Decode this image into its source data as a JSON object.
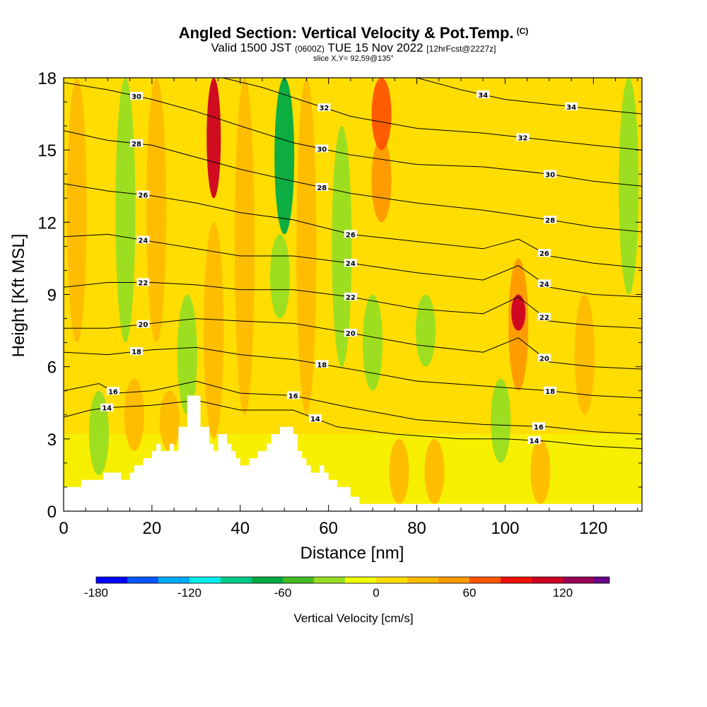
{
  "header": {
    "title": "Angled Section: Vertical Velocity & Pot.Temp.",
    "title_suffix": "(C)",
    "valid_prefix": "Valid 1500 JST",
    "valid_zulu": "(0600Z)",
    "valid_date": "TUE 15 Nov 2022",
    "forecast": "[12hrFcst@2227z]",
    "slice": "slice X,Y= 92,59@135°"
  },
  "chart_data": {
    "type": "heatmap",
    "xlabel": "Distance [nm]",
    "ylabel": "Height [Kft MSL]",
    "xlim": [
      0,
      131
    ],
    "ylim": [
      0,
      18
    ],
    "x_ticks": [
      0,
      20,
      40,
      60,
      80,
      100,
      120
    ],
    "y_ticks": [
      0,
      3,
      6,
      9,
      12,
      15,
      18
    ],
    "colorbar": {
      "label": "Vertical Velocity [cm/s]",
      "ticks": [
        -180,
        -120,
        -60,
        0,
        60,
        120
      ],
      "range": [
        -180,
        150
      ],
      "bins": [
        {
          "from": -180,
          "to": -160,
          "color": "#0000ff"
        },
        {
          "from": -160,
          "to": -140,
          "color": "#0055ff"
        },
        {
          "from": -140,
          "to": -120,
          "color": "#00aaff"
        },
        {
          "from": -120,
          "to": -100,
          "color": "#00eeee"
        },
        {
          "from": -100,
          "to": -80,
          "color": "#00cc88"
        },
        {
          "from": -80,
          "to": -60,
          "color": "#00aa44"
        },
        {
          "from": -60,
          "to": -40,
          "color": "#44bb22"
        },
        {
          "from": -40,
          "to": -20,
          "color": "#99dd22"
        },
        {
          "from": -20,
          "to": 0,
          "color": "#eeff00"
        },
        {
          "from": 0,
          "to": 20,
          "color": "#ffdd00"
        },
        {
          "from": 20,
          "to": 40,
          "color": "#ffbb00"
        },
        {
          "from": 40,
          "to": 60,
          "color": "#ff9900"
        },
        {
          "from": 60,
          "to": 80,
          "color": "#ff5500"
        },
        {
          "from": 80,
          "to": 100,
          "color": "#ee1100"
        },
        {
          "from": 100,
          "to": 120,
          "color": "#cc0022"
        },
        {
          "from": 120,
          "to": 140,
          "color": "#990055"
        },
        {
          "from": 140,
          "to": 160,
          "color": "#660088"
        }
      ]
    },
    "velocity_features": [
      {
        "x": 3,
        "y_from": 7,
        "y_to": 18,
        "value": 20
      },
      {
        "x": 8,
        "y_from": 1.5,
        "y_to": 5,
        "value": -30
      },
      {
        "x": 14,
        "y_from": 7,
        "y_to": 18,
        "value": -35
      },
      {
        "x": 16,
        "y_from": 2.5,
        "y_to": 5.5,
        "value": 25
      },
      {
        "x": 21,
        "y_from": 7,
        "y_to": 18,
        "value": 35
      },
      {
        "x": 24,
        "y_from": 2.5,
        "y_to": 5,
        "value": 25
      },
      {
        "x": 28,
        "y_from": 4,
        "y_to": 9,
        "value": -30
      },
      {
        "x": 34,
        "y_from": 13,
        "y_to": 18,
        "value": 100
      },
      {
        "x": 34,
        "y_from": 3,
        "y_to": 12,
        "value": 35
      },
      {
        "x": 41,
        "y_from": 4,
        "y_to": 18,
        "value": 20
      },
      {
        "x": 50,
        "y_from": 11.5,
        "y_to": 18,
        "value": -65
      },
      {
        "x": 49,
        "y_from": 8,
        "y_to": 11.5,
        "value": -35
      },
      {
        "x": 55,
        "y_from": 4,
        "y_to": 18,
        "value": 30
      },
      {
        "x": 63,
        "y_from": 6,
        "y_to": 16,
        "value": -35
      },
      {
        "x": 72,
        "y_from": 15,
        "y_to": 18,
        "value": 70
      },
      {
        "x": 72,
        "y_from": 12,
        "y_to": 15.5,
        "value": 40
      },
      {
        "x": 70,
        "y_from": 5,
        "y_to": 9,
        "value": -30
      },
      {
        "x": 82,
        "y_from": 6,
        "y_to": 9,
        "value": -30
      },
      {
        "x": 76,
        "y_from": 0.3,
        "y_to": 3,
        "value": 25
      },
      {
        "x": 84,
        "y_from": 0.3,
        "y_to": 3,
        "value": 25
      },
      {
        "x": 99,
        "y_from": 2,
        "y_to": 5.5,
        "value": -35
      },
      {
        "x": 103,
        "y_from": 7.5,
        "y_to": 9,
        "value": 110
      },
      {
        "x": 103,
        "y_from": 5,
        "y_to": 10.5,
        "value": 50
      },
      {
        "x": 108,
        "y_from": 0.3,
        "y_to": 3,
        "value": 25
      },
      {
        "x": 118,
        "y_from": 4,
        "y_to": 9,
        "value": 20
      },
      {
        "x": 128,
        "y_from": 9,
        "y_to": 18,
        "value": -35
      }
    ],
    "isentropes": [
      {
        "label": "14",
        "points": [
          [
            0,
            3.9
          ],
          [
            6,
            4.2
          ],
          [
            10,
            4.3
          ],
          [
            20,
            4.4
          ],
          [
            30,
            4.6
          ],
          [
            40,
            4.2
          ],
          [
            52,
            4.2
          ],
          [
            62,
            3.5
          ],
          [
            75,
            3.2
          ],
          [
            90,
            3.0
          ],
          [
            100,
            3.0
          ],
          [
            110,
            2.9
          ],
          [
            120,
            2.7
          ],
          [
            131,
            2.6
          ]
        ]
      },
      {
        "label": "16",
        "points": [
          [
            0,
            5.0
          ],
          [
            8,
            5.3
          ],
          [
            12,
            4.9
          ],
          [
            20,
            5.0
          ],
          [
            30,
            5.4
          ],
          [
            40,
            4.9
          ],
          [
            52,
            4.8
          ],
          [
            65,
            4.3
          ],
          [
            80,
            3.8
          ],
          [
            95,
            3.6
          ],
          [
            110,
            3.5
          ],
          [
            120,
            3.3
          ],
          [
            131,
            3.2
          ]
        ]
      },
      {
        "label": "18",
        "points": [
          [
            0,
            6.6
          ],
          [
            10,
            6.5
          ],
          [
            20,
            6.7
          ],
          [
            30,
            6.8
          ],
          [
            40,
            6.5
          ],
          [
            52,
            6.3
          ],
          [
            65,
            5.9
          ],
          [
            80,
            5.4
          ],
          [
            95,
            5.2
          ],
          [
            110,
            5.0
          ],
          [
            120,
            4.8
          ],
          [
            131,
            4.7
          ]
        ]
      },
      {
        "label": "20",
        "points": [
          [
            0,
            7.6
          ],
          [
            10,
            7.6
          ],
          [
            20,
            7.8
          ],
          [
            30,
            8.0
          ],
          [
            40,
            7.9
          ],
          [
            52,
            7.8
          ],
          [
            65,
            7.4
          ],
          [
            80,
            6.9
          ],
          [
            95,
            6.6
          ],
          [
            103,
            7.2
          ],
          [
            110,
            6.2
          ],
          [
            120,
            6.0
          ],
          [
            131,
            5.9
          ]
        ]
      },
      {
        "label": "22",
        "points": [
          [
            0,
            9.3
          ],
          [
            10,
            9.5
          ],
          [
            20,
            9.5
          ],
          [
            30,
            9.4
          ],
          [
            40,
            9.2
          ],
          [
            52,
            9.2
          ],
          [
            65,
            8.9
          ],
          [
            80,
            8.4
          ],
          [
            95,
            8.2
          ],
          [
            103,
            8.9
          ],
          [
            110,
            7.9
          ],
          [
            120,
            7.7
          ],
          [
            131,
            7.6
          ]
        ]
      },
      {
        "label": "24",
        "points": [
          [
            0,
            11.4
          ],
          [
            10,
            11.5
          ],
          [
            20,
            11.2
          ],
          [
            30,
            10.9
          ],
          [
            40,
            10.6
          ],
          [
            52,
            10.6
          ],
          [
            65,
            10.3
          ],
          [
            80,
            9.9
          ],
          [
            95,
            9.6
          ],
          [
            103,
            10.2
          ],
          [
            110,
            9.3
          ],
          [
            120,
            9.0
          ],
          [
            131,
            8.9
          ]
        ]
      },
      {
        "label": "26",
        "points": [
          [
            0,
            13.6
          ],
          [
            10,
            13.3
          ],
          [
            20,
            13.1
          ],
          [
            30,
            12.8
          ],
          [
            40,
            12.4
          ],
          [
            52,
            12.1
          ],
          [
            65,
            11.5
          ],
          [
            80,
            11.2
          ],
          [
            95,
            10.9
          ],
          [
            103,
            11.3
          ],
          [
            110,
            10.6
          ],
          [
            120,
            10.3
          ],
          [
            131,
            10.1
          ]
        ]
      },
      {
        "label": "28",
        "points": [
          [
            0,
            15.8
          ],
          [
            10,
            15.4
          ],
          [
            20,
            15.2
          ],
          [
            30,
            14.7
          ],
          [
            40,
            14.2
          ],
          [
            52,
            13.7
          ],
          [
            65,
            13.2
          ],
          [
            80,
            12.8
          ],
          [
            95,
            12.5
          ],
          [
            110,
            12.1
          ],
          [
            120,
            11.8
          ],
          [
            131,
            11.6
          ]
        ]
      },
      {
        "label": "30",
        "points": [
          [
            0,
            17.8
          ],
          [
            10,
            17.5
          ],
          [
            20,
            17.1
          ],
          [
            30,
            16.6
          ],
          [
            40,
            16.0
          ],
          [
            52,
            15.3
          ],
          [
            65,
            14.8
          ],
          [
            80,
            14.4
          ],
          [
            95,
            14.3
          ],
          [
            110,
            14.0
          ],
          [
            120,
            13.7
          ],
          [
            131,
            13.5
          ]
        ]
      },
      {
        "label": "32",
        "points": [
          [
            36,
            18
          ],
          [
            45,
            17.6
          ],
          [
            55,
            17.0
          ],
          [
            65,
            16.4
          ],
          [
            80,
            15.9
          ],
          [
            95,
            15.7
          ],
          [
            110,
            15.4
          ],
          [
            120,
            15.2
          ],
          [
            131,
            15.0
          ]
        ]
      },
      {
        "label": "34",
        "points": [
          [
            80,
            18
          ],
          [
            90,
            17.5
          ],
          [
            100,
            17.1
          ],
          [
            110,
            16.9
          ],
          [
            120,
            16.7
          ],
          [
            131,
            16.5
          ]
        ]
      }
    ],
    "terrain": [
      [
        0,
        1.0
      ],
      [
        4,
        1.0
      ],
      [
        4,
        1.3
      ],
      [
        9,
        1.3
      ],
      [
        9,
        1.6
      ],
      [
        13,
        1.6
      ],
      [
        13,
        1.3
      ],
      [
        15,
        1.3
      ],
      [
        15,
        1.6
      ],
      [
        16,
        1.6
      ],
      [
        16,
        1.9
      ],
      [
        18,
        1.9
      ],
      [
        18,
        2.2
      ],
      [
        20,
        2.2
      ],
      [
        20,
        2.5
      ],
      [
        21,
        2.5
      ],
      [
        21,
        2.8
      ],
      [
        22,
        2.8
      ],
      [
        22,
        2.5
      ],
      [
        24,
        2.5
      ],
      [
        24,
        2.8
      ],
      [
        25,
        2.8
      ],
      [
        25,
        2.5
      ],
      [
        26,
        2.5
      ],
      [
        26,
        3.5
      ],
      [
        28,
        3.5
      ],
      [
        28,
        4.8
      ],
      [
        31,
        4.8
      ],
      [
        31,
        3.5
      ],
      [
        33,
        3.5
      ],
      [
        33,
        2.8
      ],
      [
        34,
        2.8
      ],
      [
        34,
        2.5
      ],
      [
        35,
        2.5
      ],
      [
        35,
        3.2
      ],
      [
        37,
        3.2
      ],
      [
        37,
        2.8
      ],
      [
        38,
        2.8
      ],
      [
        38,
        2.5
      ],
      [
        39,
        2.5
      ],
      [
        39,
        2.2
      ],
      [
        40,
        2.2
      ],
      [
        40,
        1.9
      ],
      [
        42,
        1.9
      ],
      [
        42,
        2.2
      ],
      [
        44,
        2.2
      ],
      [
        44,
        2.5
      ],
      [
        46,
        2.5
      ],
      [
        46,
        2.8
      ],
      [
        47,
        2.8
      ],
      [
        47,
        3.2
      ],
      [
        49,
        3.2
      ],
      [
        49,
        3.5
      ],
      [
        52,
        3.5
      ],
      [
        52,
        3.2
      ],
      [
        53,
        3.2
      ],
      [
        53,
        2.5
      ],
      [
        54,
        2.5
      ],
      [
        54,
        2.2
      ],
      [
        55,
        2.2
      ],
      [
        55,
        1.9
      ],
      [
        56,
        1.9
      ],
      [
        56,
        1.6
      ],
      [
        58,
        1.6
      ],
      [
        58,
        1.9
      ],
      [
        59,
        1.9
      ],
      [
        59,
        1.6
      ],
      [
        60,
        1.6
      ],
      [
        60,
        1.3
      ],
      [
        62,
        1.3
      ],
      [
        62,
        1.0
      ],
      [
        65,
        1.0
      ],
      [
        65,
        0.6
      ],
      [
        67,
        0.6
      ],
      [
        67,
        0.3
      ],
      [
        131,
        0.3
      ],
      [
        131,
        0
      ]
    ]
  }
}
